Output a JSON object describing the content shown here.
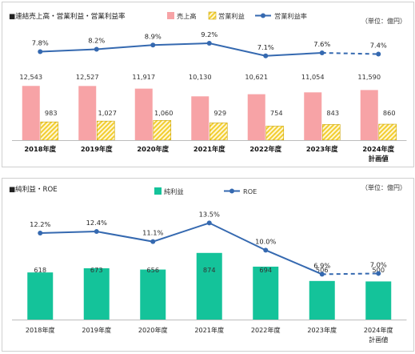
{
  "chart_data": [
    {
      "type": "bar",
      "title": "■連結売上高・営業利益・営業利益率",
      "unit": "（単位：億円）",
      "categories": [
        "2018年度",
        "2019年度",
        "2020年度",
        "2021年度",
        "2022年度",
        "2023年度",
        "2024年度"
      ],
      "category_sublabels": [
        "",
        "",
        "",
        "",
        "",
        "",
        "計画値"
      ],
      "series": [
        {
          "name": "売上高",
          "kind": "bar",
          "color": "#f7a3a6",
          "values": [
            12543,
            12527,
            11917,
            10130,
            10621,
            11054,
            11590
          ],
          "labels": [
            "12,543",
            "12,527",
            "11,917",
            "10,130",
            "10,621",
            "11,054",
            "11,590"
          ]
        },
        {
          "name": "営業利益",
          "kind": "bar",
          "color": "#f2cd2f",
          "pattern": "hatched",
          "values": [
            983,
            1027,
            1060,
            929,
            754,
            843,
            860
          ],
          "labels": [
            "983",
            "1,027",
            "1,060",
            "929",
            "754",
            "843",
            "860"
          ]
        },
        {
          "name": "営業利益率",
          "kind": "line",
          "color": "#3569b0",
          "values": [
            7.8,
            8.2,
            8.9,
            9.2,
            7.1,
            7.6,
            7.4
          ],
          "labels": [
            "7.8%",
            "8.2%",
            "8.9%",
            "9.2%",
            "7.1%",
            "7.6%",
            "7.4%"
          ],
          "dashed_last_segment": true
        }
      ]
    },
    {
      "type": "bar",
      "title": "■純利益・ROE",
      "unit": "（単位：億円）",
      "categories": [
        "2018年度",
        "2019年度",
        "2020年度",
        "2021年度",
        "2022年度",
        "2023年度",
        "2024年度"
      ],
      "category_sublabels": [
        "",
        "",
        "",
        "",
        "",
        "",
        "計画値"
      ],
      "series": [
        {
          "name": "純利益",
          "kind": "bar",
          "color": "#14c39a",
          "values": [
            618,
            673,
            656,
            874,
            694,
            506,
            500
          ],
          "labels": [
            "618",
            "673",
            "656",
            "874",
            "694",
            "506",
            "500"
          ]
        },
        {
          "name": "ROE",
          "kind": "line",
          "color": "#3569b0",
          "values": [
            12.2,
            12.4,
            11.1,
            13.5,
            10.0,
            6.9,
            7.0
          ],
          "labels": [
            "12.2%",
            "12.4%",
            "11.1%",
            "13.5%",
            "10.0%",
            "6.9%",
            "7.0%"
          ],
          "dashed_last_segment": true
        }
      ]
    }
  ]
}
